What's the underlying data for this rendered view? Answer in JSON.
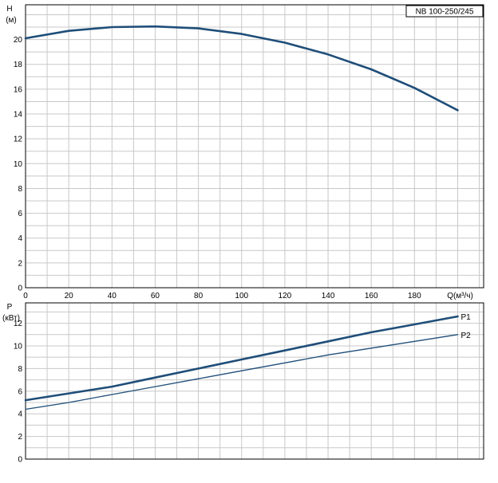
{
  "chart_data": [
    {
      "type": "line",
      "model_label": "NB 100-250/245",
      "ylabel_line1": "H",
      "ylabel_line2": "(м)",
      "xlabel": "Q(м³/ч)",
      "x_ticks": [
        0,
        20,
        40,
        60,
        80,
        100,
        120,
        140,
        160,
        180
      ],
      "y_ticks": [
        0,
        2,
        4,
        6,
        8,
        10,
        12,
        14,
        16,
        18,
        20
      ],
      "xlim": [
        0,
        212
      ],
      "ylim": [
        0,
        22.8
      ],
      "grid": true,
      "series": [
        {
          "name": "",
          "color": "#1f4e79",
          "x": [
            0,
            20,
            40,
            60,
            80,
            100,
            120,
            140,
            160,
            180,
            200
          ],
          "y": [
            20.1,
            20.7,
            21.0,
            21.05,
            20.9,
            20.45,
            19.75,
            18.8,
            17.6,
            16.1,
            14.3
          ]
        }
      ]
    },
    {
      "type": "line",
      "ylabel_line1": "P",
      "ylabel_line2": "(кВт)",
      "x_ticks": [
        0,
        20,
        40,
        60,
        80,
        100,
        120,
        140,
        160,
        180
      ],
      "y_ticks": [
        0,
        2,
        4,
        6,
        8,
        10,
        12
      ],
      "xlim": [
        0,
        212
      ],
      "ylim": [
        0,
        13.8
      ],
      "grid": true,
      "series": [
        {
          "name": "P1",
          "color": "#1f4e79",
          "x": [
            0,
            20,
            40,
            60,
            80,
            100,
            120,
            140,
            160,
            180,
            200
          ],
          "y": [
            5.2,
            5.8,
            6.4,
            7.2,
            8.0,
            8.8,
            9.6,
            10.4,
            11.2,
            11.9,
            12.6
          ]
        },
        {
          "name": "P2",
          "color": "#1f4e79",
          "x": [
            0,
            20,
            40,
            60,
            80,
            100,
            120,
            140,
            160,
            180,
            200
          ],
          "y": [
            4.4,
            5.0,
            5.7,
            6.4,
            7.1,
            7.8,
            8.5,
            9.2,
            9.8,
            10.4,
            11.0
          ]
        }
      ]
    }
  ]
}
